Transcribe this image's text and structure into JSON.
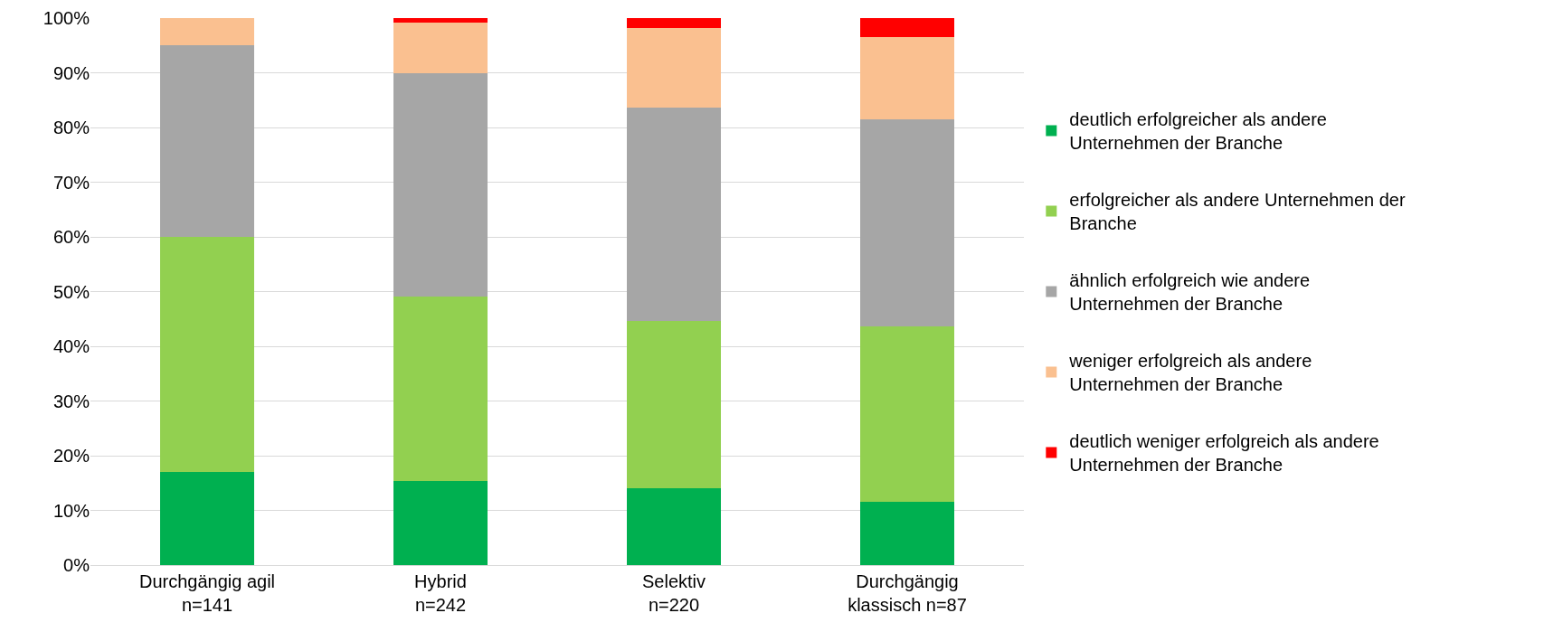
{
  "chart_data": {
    "type": "bar",
    "stacked": true,
    "categories": [
      "Durchgängig agil\nn=141",
      "Hybrid\nn=242",
      "Selektiv\nn=220",
      "Durchgängig\nklassisch n=87"
    ],
    "series": [
      {
        "name": "deutlich erfolgreicher als andere Unternehmen der Branche",
        "color": "#00b050",
        "values": [
          17,
          15.3,
          14,
          11.5
        ]
      },
      {
        "name": "erfolgreicher als andere Unternehmen der Branche",
        "color": "#92d050",
        "values": [
          43,
          33.8,
          30.6,
          32.2
        ]
      },
      {
        "name": "ähnlich erfolgreich wie andere Unternehmen der Branche",
        "color": "#a6a6a6",
        "values": [
          35,
          40.8,
          39,
          37.8
        ]
      },
      {
        "name": "weniger erfolgreich als andere Unternehmen der Branche",
        "color": "#fac090",
        "values": [
          5,
          9.2,
          14.6,
          15.1
        ]
      },
      {
        "name": "deutlich weniger erfolgreich als andere Unternehmen der Branche",
        "color": "#ff0000",
        "values": [
          0,
          0.9,
          1.8,
          3.4
        ]
      }
    ],
    "ylim": [
      0,
      100
    ],
    "yticks": [
      {
        "value": 0,
        "label": "0%"
      },
      {
        "value": 10,
        "label": "10%"
      },
      {
        "value": 20,
        "label": "20%"
      },
      {
        "value": 30,
        "label": "30%"
      },
      {
        "value": 40,
        "label": "40%"
      },
      {
        "value": 50,
        "label": "50%"
      },
      {
        "value": 60,
        "label": "60%"
      },
      {
        "value": 70,
        "label": "70%"
      },
      {
        "value": 80,
        "label": "80%"
      },
      {
        "value": 90,
        "label": "90%"
      },
      {
        "value": 100,
        "label": "100%"
      }
    ],
    "grid": "y",
    "legend": "right"
  }
}
